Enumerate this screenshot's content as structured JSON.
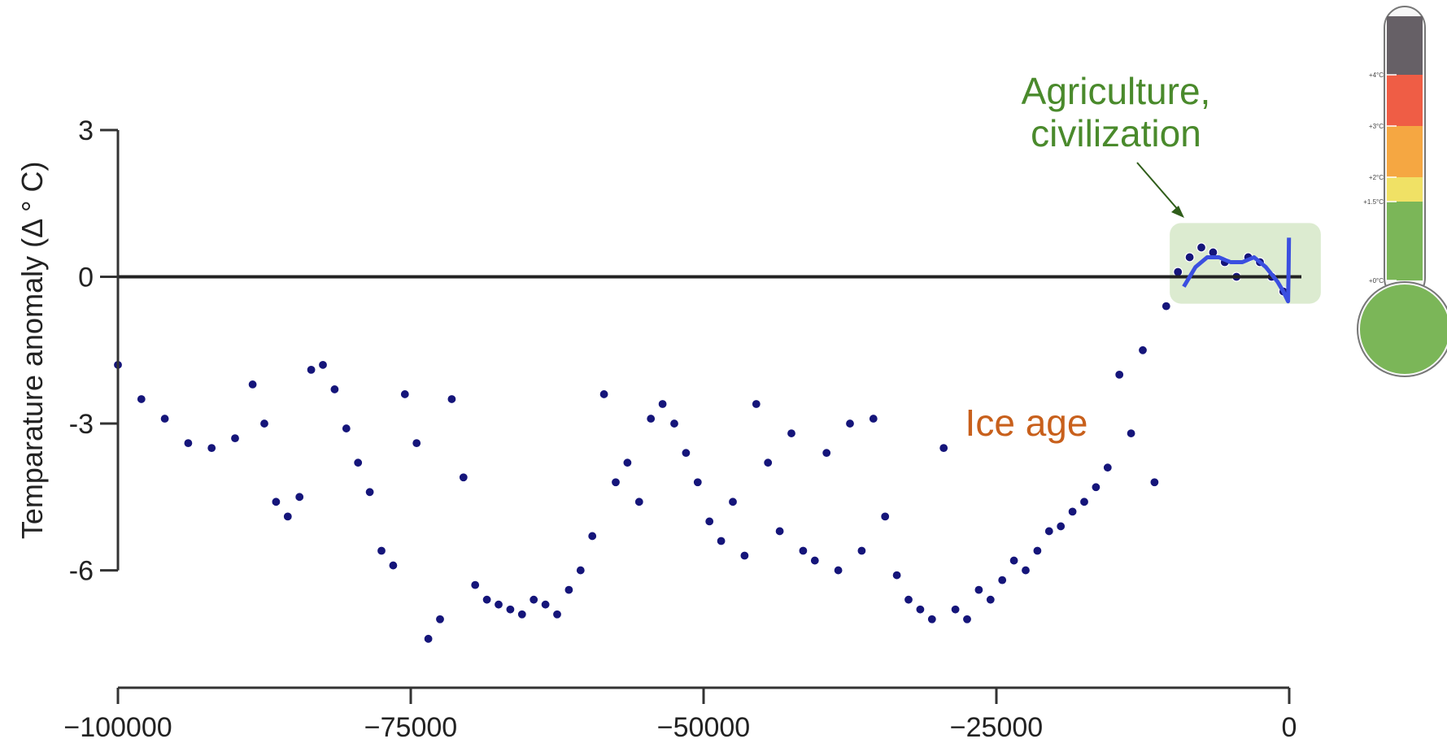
{
  "chart_data": {
    "type": "scatter",
    "title": "",
    "xlabel": "",
    "ylabel": "Temparature anomaly (Δ ° C)",
    "xlim": [
      -100000,
      0
    ],
    "ylim": [
      -8.4,
      3
    ],
    "x_ticks": [
      -100000,
      -75000,
      -50000,
      -25000,
      0
    ],
    "x_tick_labels": [
      "−100000",
      "−75000",
      "−50000",
      "−25000",
      "0"
    ],
    "y_ticks": [
      3,
      0,
      -3,
      -6
    ],
    "y_tick_labels": [
      "3",
      "0",
      "-3",
      "-6"
    ],
    "reference_line_y": 0,
    "grid": false,
    "legend": "none",
    "series": [
      {
        "marker": "dot",
        "x": [
          -100000,
          -98000,
          -96000,
          -94000,
          -92000,
          -90000,
          -88500,
          -87500,
          -86500,
          -85500,
          -84500,
          -83500,
          -82500,
          -81500,
          -80500,
          -79500,
          -78500,
          -77500,
          -76500,
          -75500,
          -74500,
          -73500,
          -72500,
          -71500,
          -70500,
          -69500,
          -68500,
          -67500,
          -66500,
          -65500,
          -64500,
          -63500,
          -62500,
          -61500,
          -60500,
          -59500,
          -58500,
          -57500,
          -56500,
          -55500,
          -54500,
          -53500,
          -52500,
          -51500,
          -50500,
          -49500,
          -48500,
          -47500,
          -46500,
          -45500,
          -44500,
          -43500,
          -42500,
          -41500,
          -40500,
          -39500,
          -38500,
          -37500,
          -36500,
          -35500,
          -34500,
          -33500,
          -32500,
          -31500,
          -30500,
          -29500,
          -28500,
          -27500,
          -26500,
          -25500,
          -24500,
          -23500,
          -22500,
          -21500,
          -20500,
          -19500,
          -18500,
          -17500,
          -16500,
          -15500,
          -14500,
          -13500,
          -12500,
          -11500,
          -10500,
          -9500,
          -8500,
          -7500,
          -6500,
          -5500,
          -4500,
          -3500,
          -2500,
          -1500,
          -500
        ],
        "y": [
          -1.8,
          -2.5,
          -2.9,
          -3.4,
          -3.5,
          -3.3,
          -2.2,
          -3.0,
          -4.6,
          -4.9,
          -4.5,
          -1.9,
          -1.8,
          -2.3,
          -3.1,
          -3.8,
          -4.4,
          -5.6,
          -5.9,
          -2.4,
          -3.4,
          -7.4,
          -7.0,
          -2.5,
          -4.1,
          -6.3,
          -6.6,
          -6.7,
          -6.8,
          -6.9,
          -6.6,
          -6.7,
          -6.9,
          -6.4,
          -6.0,
          -5.3,
          -2.4,
          -4.2,
          -3.8,
          -4.6,
          -2.9,
          -2.6,
          -3.0,
          -3.6,
          -4.2,
          -5.0,
          -5.4,
          -4.6,
          -5.7,
          -2.6,
          -3.8,
          -5.2,
          -3.2,
          -5.6,
          -5.8,
          -3.6,
          -6.0,
          -3.0,
          -5.6,
          -2.9,
          -4.9,
          -6.1,
          -6.6,
          -6.8,
          -7.0,
          -3.5,
          -6.8,
          -7.0,
          -6.4,
          -6.6,
          -6.2,
          -5.8,
          -6.0,
          -5.6,
          -5.2,
          -5.1,
          -4.8,
          -4.6,
          -4.3,
          -3.9,
          -2.0,
          -3.2,
          -1.5,
          -4.2,
          -0.6,
          0.1,
          0.4,
          0.6,
          0.5,
          0.3,
          0.0,
          0.4,
          0.3,
          0.0,
          -0.3
        ]
      }
    ],
    "line_series": {
      "x": [
        -9000,
        -8000,
        -7000,
        -6000,
        -5000,
        -4000,
        -3000,
        -2000,
        -1000,
        -500,
        -100,
        -50,
        -20
      ],
      "y": [
        -0.2,
        0.2,
        0.4,
        0.4,
        0.3,
        0.3,
        0.4,
        0.2,
        -0.1,
        -0.3,
        -0.5,
        0.2,
        0.8
      ]
    },
    "annotations": [
      {
        "text": "Agriculture,",
        "color": "#4a8a2c"
      },
      {
        "text": "civilization",
        "color": "#4a8a2c"
      },
      {
        "text": "Ice age",
        "color": "#c8601c"
      }
    ]
  },
  "thermometer": {
    "bands": [
      {
        "color": "#666066"
      },
      {
        "color": "#ef5d45"
      },
      {
        "color": "#f5a742"
      },
      {
        "color": "#f0e165"
      },
      {
        "color": "#7bb658"
      }
    ],
    "labels": [
      "+4°C",
      "+3°C",
      "+2°C",
      "+1.5°C",
      "+0°C"
    ]
  },
  "colors": {
    "points": "#15157a",
    "line": "#3b4fe0",
    "highlight_box": "#dcebd0",
    "axis": "#333333"
  }
}
